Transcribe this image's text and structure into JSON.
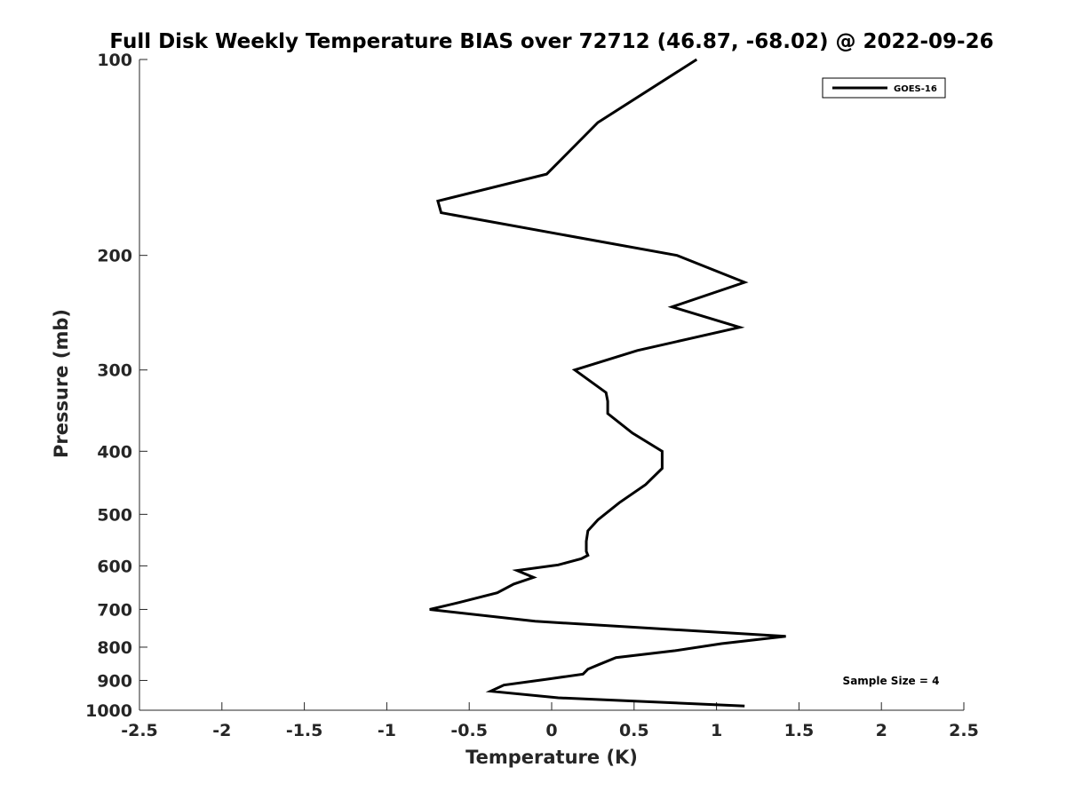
{
  "chart_data": {
    "type": "line",
    "title": "Full Disk Weekly Temperature BIAS over 72712 (46.87, -68.02) @ 2022-09-26",
    "xlabel": "Temperature (K)",
    "ylabel": "Pressure (mb)",
    "xlim": [
      -2.5,
      2.5
    ],
    "ylim": [
      100,
      1000
    ],
    "y_scale": "log",
    "y_reversed": true,
    "x_ticks": [
      -2.5,
      -2,
      -1.5,
      -1,
      -0.5,
      0,
      0.5,
      1,
      1.5,
      2,
      2.5
    ],
    "x_tick_labels": [
      "-2.5",
      "-2",
      "-1.5",
      "-1",
      "-0.5",
      "0",
      "0.5",
      "1",
      "1.5",
      "2",
      "2.5"
    ],
    "y_ticks": [
      100,
      200,
      300,
      400,
      500,
      600,
      700,
      800,
      900,
      1000
    ],
    "y_tick_labels": [
      "100",
      "200",
      "300",
      "400",
      "500",
      "600",
      "700",
      "800",
      "900",
      "1000"
    ],
    "grid": false,
    "legend_position": "top-right",
    "series": [
      {
        "name": "GOES-16",
        "color": "#000000",
        "x": [
          0.88,
          0.28,
          -0.03,
          -0.69,
          -0.67,
          0.76,
          1.17,
          0.73,
          1.14,
          0.52,
          0.14,
          0.33,
          0.34,
          0.34,
          0.49,
          0.67,
          0.67,
          0.57,
          0.41,
          0.28,
          0.22,
          0.21,
          0.21,
          0.21,
          0.22,
          0.18,
          0.04,
          -0.21,
          -0.11,
          -0.23,
          -0.33,
          -0.56,
          -0.74,
          -0.1,
          1.42,
          1.03,
          0.75,
          0.39,
          0.29,
          0.22,
          0.19,
          -0.04,
          -0.29,
          -0.37,
          0.04,
          1.17
        ],
        "y": [
          100,
          125,
          150,
          165,
          172,
          200,
          220,
          240,
          258,
          280,
          300,
          325,
          335,
          350,
          375,
          400,
          425,
          450,
          480,
          510,
          530,
          550,
          565,
          570,
          578,
          585,
          598,
          610,
          625,
          640,
          660,
          683,
          700,
          730,
          770,
          790,
          810,
          830,
          850,
          865,
          880,
          897,
          915,
          935,
          957,
          985
        ]
      }
    ],
    "annotations": [
      "Sample Size = 4"
    ]
  }
}
